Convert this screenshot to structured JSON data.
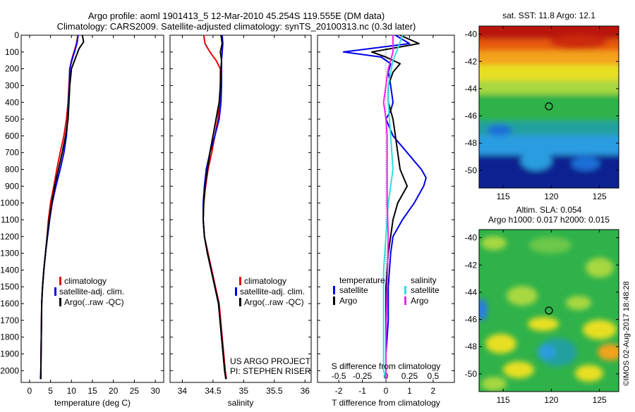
{
  "header": {
    "title_line1": "Argo profile: aoml 1901413_5 12-Mar-2010 45.254S 119.555E (DM data)",
    "title_line2": "Climatology: CARS2009. Satellite-adjusted climatology: synTS_20100313.nc (0.3d later)"
  },
  "footer": {
    "project_line1": "US ARGO PROJECT",
    "project_line2": "PI: STEPHEN RISER",
    "credit": "©IMOS 02-Aug-2017 18:48:28"
  },
  "colors": {
    "climatology": "#e60000",
    "satellite": "#0000e6",
    "argo": "#000000",
    "salinity_satellite": "#33dddd",
    "salinity_argo": "#ee22ee"
  },
  "chart_data": [
    {
      "type": "line",
      "id": "temperature",
      "xlabel": "temperature (deg C)",
      "ylabel": "",
      "xlim": [
        -2,
        32
      ],
      "ylim": [
        2070,
        0
      ],
      "xticks": [
        0,
        5,
        10,
        15,
        20,
        25,
        30
      ],
      "yticks": [
        0,
        100,
        200,
        300,
        400,
        500,
        600,
        700,
        800,
        900,
        1000,
        1100,
        1200,
        1300,
        1400,
        1500,
        1600,
        1700,
        1800,
        1900,
        2000
      ],
      "legend_position": "center-right",
      "legend": [
        "climatology",
        "satellite-adj. clim.",
        "Argo(..raw -QC)"
      ],
      "series": [
        {
          "name": "climatology",
          "color_key": "climatology",
          "x": [
            11.5,
            11.2,
            10.6,
            10.0,
            9.6,
            9.4,
            9.2,
            8.8,
            8.2,
            7.3,
            6.5,
            5.8,
            5.0,
            4.5,
            4.2,
            3.8,
            3.4,
            3.1,
            2.9,
            2.8,
            2.7,
            2.7
          ],
          "y": [
            0,
            50,
            100,
            150,
            200,
            300,
            400,
            500,
            600,
            700,
            800,
            900,
            1000,
            1100,
            1200,
            1300,
            1400,
            1500,
            1600,
            1800,
            2000,
            2050
          ]
        },
        {
          "name": "satellite-adj. clim.",
          "color_key": "satellite",
          "x": [
            11.6,
            11.3,
            10.7,
            10.1,
            9.6,
            9.5,
            9.3,
            9.1,
            8.8,
            8.2,
            7.3,
            6.3,
            5.4,
            4.8,
            4.3,
            3.8,
            3.4,
            3.1,
            2.9,
            2.8,
            2.7,
            2.6
          ],
          "y": [
            0,
            50,
            100,
            150,
            200,
            300,
            400,
            500,
            600,
            700,
            800,
            900,
            1000,
            1100,
            1200,
            1300,
            1400,
            1500,
            1600,
            1800,
            2000,
            2050
          ]
        },
        {
          "name": "Argo(..raw -QC)",
          "color_key": "argo",
          "x": [
            12.6,
            12.9,
            11.8,
            11.2,
            10.0,
            9.6,
            9.4,
            9.2,
            8.6,
            7.8,
            6.9,
            6.0,
            5.3,
            4.7,
            4.2,
            3.8,
            3.4,
            3.1,
            2.9,
            2.8,
            2.7,
            2.7
          ],
          "y": [
            0,
            40,
            80,
            120,
            200,
            300,
            400,
            500,
            600,
            700,
            800,
            900,
            1000,
            1100,
            1200,
            1300,
            1400,
            1500,
            1600,
            1800,
            2000,
            2050
          ]
        }
      ]
    },
    {
      "type": "line",
      "id": "salinity",
      "xlabel": "salinity",
      "ylabel": "",
      "xlim": [
        33.8,
        36.1
      ],
      "ylim": [
        2070,
        0
      ],
      "xticks": [
        34,
        34.5,
        35,
        35.5,
        36
      ],
      "legend_position": "center-right",
      "legend": [
        "climatology",
        "satellite-adj. clim.",
        "Argo(..raw -QC)"
      ],
      "series": [
        {
          "name": "climatology",
          "color_key": "climatology",
          "x": [
            34.35,
            34.37,
            34.45,
            34.55,
            34.62,
            34.62,
            34.61,
            34.58,
            34.53,
            34.48,
            34.42,
            34.38,
            34.35,
            34.34,
            34.36,
            34.42,
            34.48,
            34.54,
            34.6,
            34.65,
            34.7,
            34.72
          ],
          "y": [
            0,
            50,
            100,
            150,
            200,
            300,
            400,
            500,
            600,
            700,
            800,
            900,
            1000,
            1100,
            1200,
            1300,
            1400,
            1500,
            1600,
            1800,
            2000,
            2050
          ]
        },
        {
          "name": "satellite-adj. clim.",
          "color_key": "satellite",
          "x": [
            34.65,
            34.66,
            34.65,
            34.64,
            34.64,
            34.64,
            34.63,
            34.6,
            34.53,
            34.45,
            34.39,
            34.36,
            34.34,
            34.34,
            34.36,
            34.41,
            34.47,
            34.53,
            34.59,
            34.64,
            34.69,
            34.71
          ],
          "y": [
            0,
            50,
            100,
            150,
            200,
            300,
            400,
            500,
            600,
            700,
            800,
            900,
            1000,
            1100,
            1200,
            1300,
            1400,
            1500,
            1600,
            1800,
            2000,
            2050
          ]
        },
        {
          "name": "Argo(..raw -QC)",
          "color_key": "argo",
          "x": [
            34.63,
            34.65,
            34.62,
            34.64,
            34.63,
            34.62,
            34.6,
            34.55,
            34.5,
            34.45,
            34.41,
            34.37,
            34.35,
            34.34,
            34.36,
            34.41,
            34.47,
            34.53,
            34.59,
            34.64,
            34.69,
            34.71
          ],
          "y": [
            0,
            50,
            100,
            150,
            200,
            300,
            400,
            500,
            600,
            700,
            800,
            900,
            1000,
            1100,
            1200,
            1300,
            1400,
            1500,
            1600,
            1800,
            2000,
            2050
          ]
        }
      ]
    },
    {
      "type": "line",
      "id": "difference",
      "xlabel": "T difference from climatology",
      "xlabel_top": "S difference from climatology",
      "ylabel": "",
      "xlim": [
        -2.9,
        2.9
      ],
      "ylim": [
        2070,
        0
      ],
      "xticks": [
        -2,
        -1,
        0,
        1,
        2
      ],
      "xtick_labels": [
        "-2",
        "-1",
        "0",
        "1",
        "2"
      ],
      "xticks_top_positions": [
        -2,
        -1,
        0,
        1,
        2
      ],
      "xtick_labels_top": [
        "-0.5",
        "-0.25",
        "0",
        "0.25",
        "0.5"
      ],
      "legend_groups": [
        "temperature",
        "salinity"
      ],
      "legend": [
        "satellite",
        "Argo",
        "satellite",
        "Argo"
      ],
      "series": [
        {
          "name": "satellite",
          "group": "temperature",
          "color_key": "satellite",
          "x": [
            0.4,
            1.0,
            -1.8,
            -0.2,
            0.2,
            0.1,
            0.2,
            0.3,
            0.2,
            0.0,
            0.3,
            0.9,
            1.5,
            1.7,
            1.6,
            1.2,
            0.7,
            0.3,
            0.2,
            0.1,
            0.1,
            0.0,
            0.0,
            0.0
          ],
          "y": [
            0,
            50,
            100,
            130,
            170,
            220,
            300,
            400,
            450,
            500,
            600,
            700,
            800,
            850,
            900,
            1000,
            1100,
            1200,
            1300,
            1500,
            1700,
            1900,
            2000,
            2050
          ]
        },
        {
          "name": "Argo",
          "group": "temperature",
          "color_key": "argo",
          "x": [
            0.6,
            1.4,
            -0.6,
            0.0,
            0.6,
            0.3,
            0.1,
            0.1,
            0.3,
            0.4,
            0.5,
            0.6,
            0.9,
            0.5,
            0.3,
            0.2,
            0.1,
            0.0,
            0.0,
            0.0,
            0.0,
            0.0
          ],
          "y": [
            0,
            50,
            100,
            130,
            170,
            220,
            300,
            400,
            500,
            600,
            700,
            800,
            900,
            1000,
            1100,
            1200,
            1300,
            1500,
            1700,
            1900,
            2000,
            2050
          ]
        },
        {
          "name": "satellite",
          "group": "salinity",
          "color_key": "salinity_satellite",
          "x": [
            0.7,
            0.5,
            0.3,
            0.2,
            0.1,
            0.1,
            0.2,
            0.3,
            0.2,
            0.1,
            0.0,
            -0.1,
            -0.1,
            -0.1,
            -0.1,
            0.0
          ],
          "y": [
            0,
            80,
            150,
            220,
            300,
            400,
            600,
            800,
            900,
            1000,
            1200,
            1400,
            1600,
            1800,
            2000,
            2050
          ]
        },
        {
          "name": "Argo",
          "group": "salinity",
          "color_key": "salinity_argo",
          "x": [
            0.3,
            0.3,
            0.1,
            0.0,
            -0.1,
            0.0,
            0.05,
            0.05,
            0.05,
            0.1,
            0.05,
            0.0,
            0.0
          ],
          "y": [
            0,
            100,
            200,
            300,
            400,
            500,
            600,
            800,
            1000,
            1200,
            1500,
            1800,
            2050
          ]
        }
      ]
    },
    {
      "type": "heatmap",
      "id": "sst_map",
      "title": "sat. SST: 11.8 Argo: 12.1",
      "xlim": [
        112.5,
        127
      ],
      "ylim": [
        -51.3,
        -39.4
      ],
      "xticks": [
        115,
        120,
        125
      ],
      "yticks": [
        -40,
        -42,
        -44,
        -46,
        -48,
        -50
      ],
      "marker": {
        "lon": 119.555,
        "lat": -45.254
      }
    },
    {
      "type": "heatmap",
      "id": "sla_map",
      "title": "Altim. SLA: 0.054",
      "subtitle": "Argo h1000: 0.017 h2000: 0.015",
      "xlim": [
        112.5,
        127
      ],
      "ylim": [
        -51.3,
        -39.4
      ],
      "xticks": [
        115,
        120,
        125
      ],
      "yticks": [
        -40,
        -42,
        -44,
        -46,
        -48,
        -50
      ],
      "marker": {
        "lon": 119.555,
        "lat": -45.254
      }
    }
  ]
}
